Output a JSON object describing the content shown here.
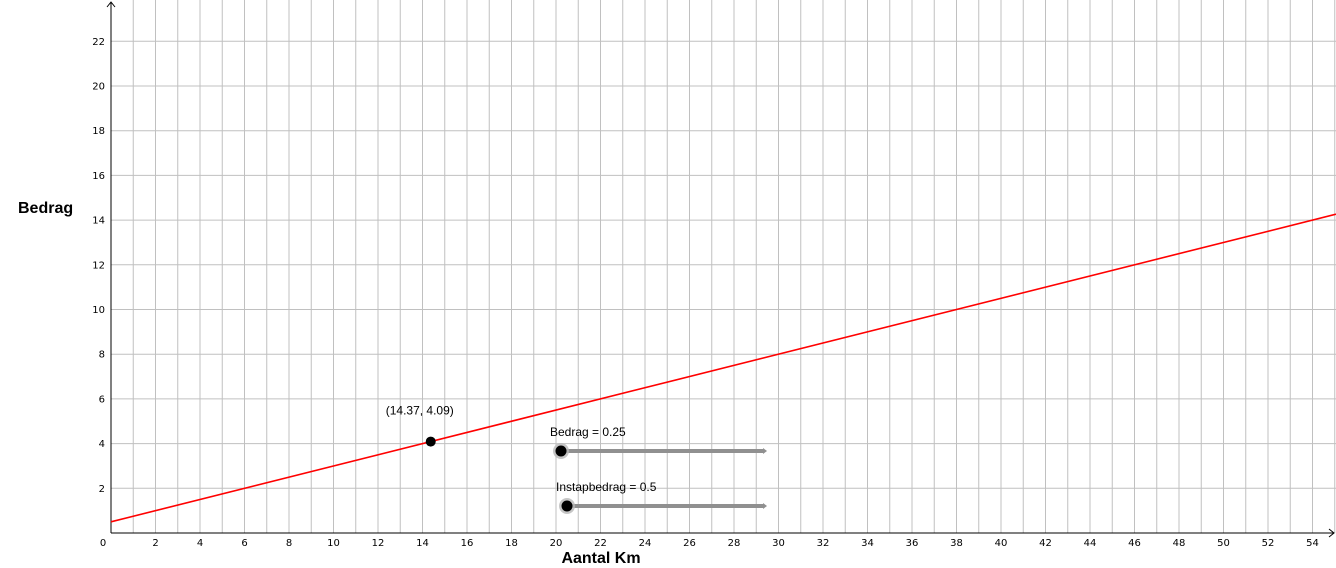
{
  "chart_data": {
    "type": "line",
    "xlabel": "Aantal Km",
    "ylabel": "Bedrag",
    "xlim": [
      0,
      55
    ],
    "ylim": [
      0,
      24
    ],
    "x_ticks": [
      0,
      2,
      4,
      6,
      8,
      10,
      12,
      14,
      16,
      18,
      20,
      22,
      24,
      26,
      28,
      30,
      32,
      34,
      36,
      38,
      40,
      42,
      44,
      46,
      48,
      50,
      52,
      54
    ],
    "y_ticks": [
      2,
      4,
      6,
      8,
      10,
      12,
      14,
      16,
      18,
      20,
      22
    ],
    "grid": true,
    "line": {
      "slope": 0.25,
      "intercept": 0.5,
      "color": "#ff0000"
    },
    "point": {
      "x": 14.37,
      "y": 4.09,
      "label": "(14.37, 4.09)"
    }
  },
  "sliders": [
    {
      "label": "Bedrag = 0.25",
      "value": 0.25
    },
    {
      "label": "Instapbedrag = 0.5",
      "value": 0.5
    }
  ]
}
